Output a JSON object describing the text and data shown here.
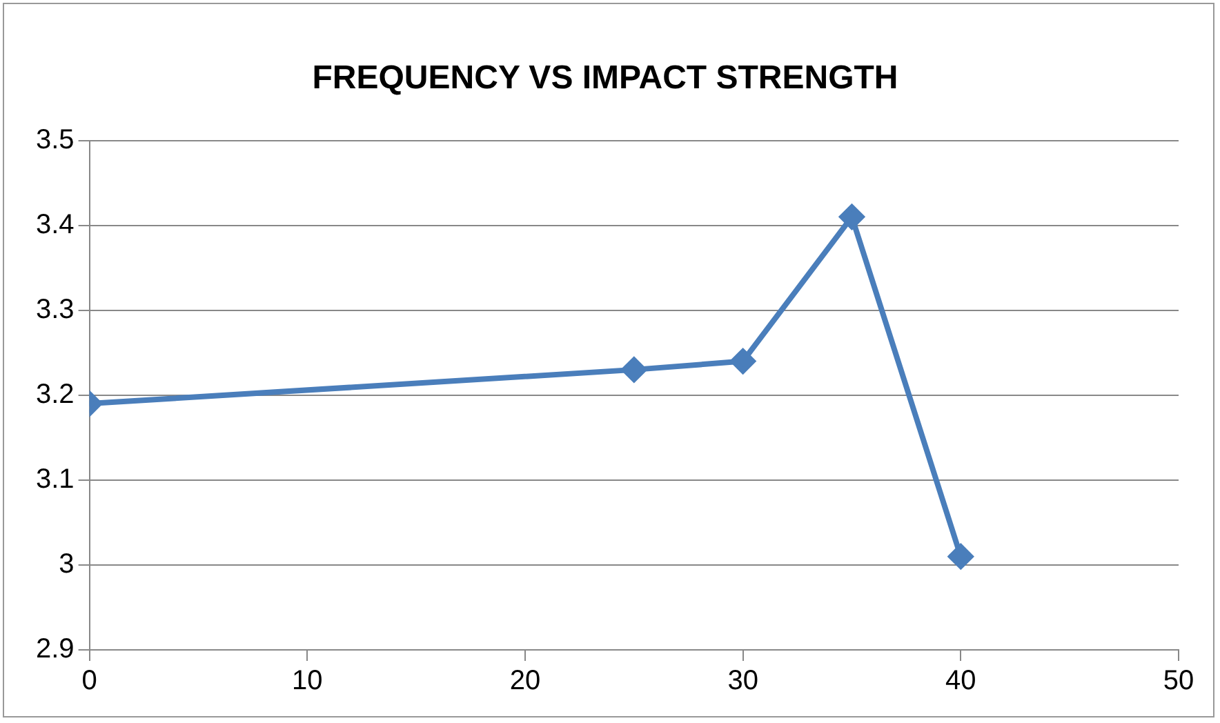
{
  "chart_data": {
    "type": "line",
    "title": "FREQUENCY VS IMPACT STRENGTH",
    "x": [
      0,
      25,
      30,
      35,
      40
    ],
    "series": [
      {
        "color": "#4a7ebb",
        "values": [
          3.19,
          3.23,
          3.24,
          3.41,
          3.01
        ]
      }
    ],
    "xlim": [
      0,
      50
    ],
    "xticks": [
      0,
      10,
      20,
      30,
      40,
      50
    ],
    "ylim": [
      2.9,
      3.5
    ],
    "yticks": [
      2.9,
      3.0,
      3.1,
      3.2,
      3.3,
      3.4,
      3.5
    ],
    "grid": "y",
    "legend": false,
    "marker": "diamond",
    "line_style": "solid"
  }
}
